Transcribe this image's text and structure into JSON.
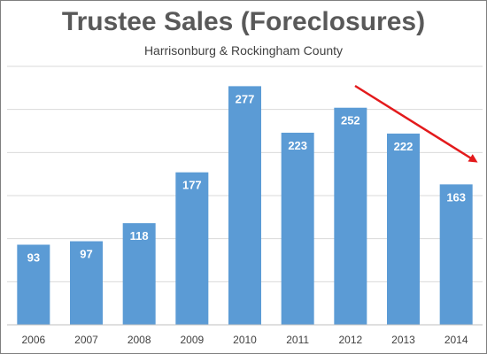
{
  "chart_data": {
    "type": "bar",
    "title": "Trustee Sales (Foreclosures)",
    "subtitle": "Harrisonburg & Rockingham County",
    "categories": [
      "2006",
      "2007",
      "2008",
      "2009",
      "2010",
      "2011",
      "2012",
      "2013",
      "2014"
    ],
    "values": [
      93,
      97,
      118,
      177,
      277,
      223,
      252,
      222,
      163
    ],
    "xlabel": "",
    "ylabel": "",
    "ylim": [
      0,
      300
    ],
    "y_tick_labels_visible": false,
    "grid": true,
    "data_labels": true,
    "bar_color": "#5b9bd5",
    "annotation": {
      "type": "arrow",
      "meaning": "downward trend",
      "color": "#e31a1c"
    }
  }
}
